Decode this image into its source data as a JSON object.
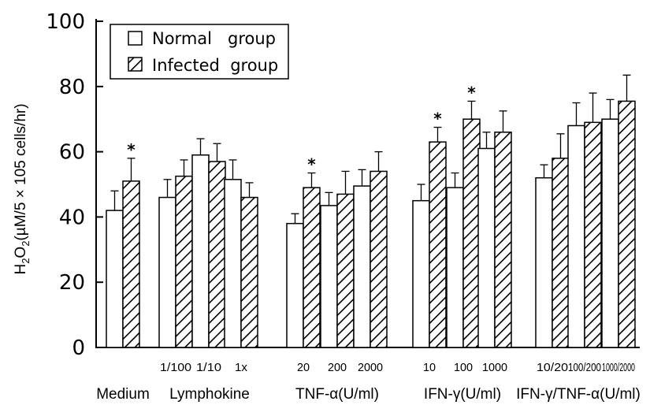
{
  "chart_data": {
    "type": "bar",
    "ylabel_parts": [
      "H",
      "2",
      "O",
      "2",
      "(µM/5 × 105 cells/hr)"
    ],
    "ylim": [
      0,
      100
    ],
    "yticks": [
      "0",
      "20",
      "40",
      "60",
      "80",
      "100"
    ],
    "legend_position": "top-left",
    "series": [
      {
        "name": "Normal   group",
        "pattern": "none"
      },
      {
        "name": "Infected  group",
        "pattern": "diagonal-hatch"
      }
    ],
    "categories": [
      {
        "group": "Medium",
        "tick": "",
        "normal": 42,
        "normal_err": 6,
        "infected": 51,
        "infected_err": 7,
        "sig": true
      },
      {
        "group": "Lymphokine",
        "tick": "1/100",
        "normal": 46,
        "normal_err": 5.5,
        "infected": 52.5,
        "infected_err": 5,
        "sig": false
      },
      {
        "group": "Lymphokine",
        "tick": "1/10",
        "normal": 59,
        "normal_err": 5,
        "infected": 57,
        "infected_err": 5.5,
        "sig": false
      },
      {
        "group": "Lymphokine",
        "tick": "1x",
        "normal": 51.5,
        "normal_err": 6,
        "infected": 46,
        "infected_err": 4.5,
        "sig": false
      },
      {
        "group": "TNF-α(U/ml)",
        "tick": "20",
        "normal": 38,
        "normal_err": 3,
        "infected": 49,
        "infected_err": 4.5,
        "sig": true
      },
      {
        "group": "TNF-α(U/ml)",
        "tick": "200",
        "normal": 43.5,
        "normal_err": 4,
        "infected": 47,
        "infected_err": 7,
        "sig": false
      },
      {
        "group": "TNF-α(U/ml)",
        "tick": "2000",
        "normal": 49.5,
        "normal_err": 5,
        "infected": 54,
        "infected_err": 6,
        "sig": false
      },
      {
        "group": "IFN-γ(U/ml)",
        "tick": "10",
        "normal": 45,
        "normal_err": 5,
        "infected": 63,
        "infected_err": 4.5,
        "sig": true
      },
      {
        "group": "IFN-γ(U/ml)",
        "tick": "100",
        "normal": 49,
        "normal_err": 4.5,
        "infected": 70,
        "infected_err": 5.5,
        "sig": true
      },
      {
        "group": "IFN-γ(U/ml)",
        "tick": "1000",
        "normal": 61,
        "normal_err": 5,
        "infected": 66,
        "infected_err": 6.5,
        "sig": false
      },
      {
        "group": "IFN-γ/TNF-α(U/ml)",
        "tick": "10/20",
        "normal": 52,
        "normal_err": 4,
        "infected": 58,
        "infected_err": 7.5,
        "sig": false
      },
      {
        "group": "IFN-γ/TNF-α(U/ml)",
        "tick": "100/200",
        "normal": 68,
        "normal_err": 7,
        "infected": 69,
        "infected_err": 9,
        "sig": false
      },
      {
        "group": "IFN-γ/TNF-α(U/ml)",
        "tick": "1000/2000",
        "normal": 70,
        "normal_err": 6,
        "infected": 75.5,
        "infected_err": 8,
        "sig": false
      }
    ],
    "groups": [
      "Medium",
      "Lymphokine",
      "TNF-α(U/ml)",
      "IFN-γ(U/ml)",
      "IFN-γ/TNF-α(U/ml)"
    ],
    "significance_marker": "*"
  }
}
